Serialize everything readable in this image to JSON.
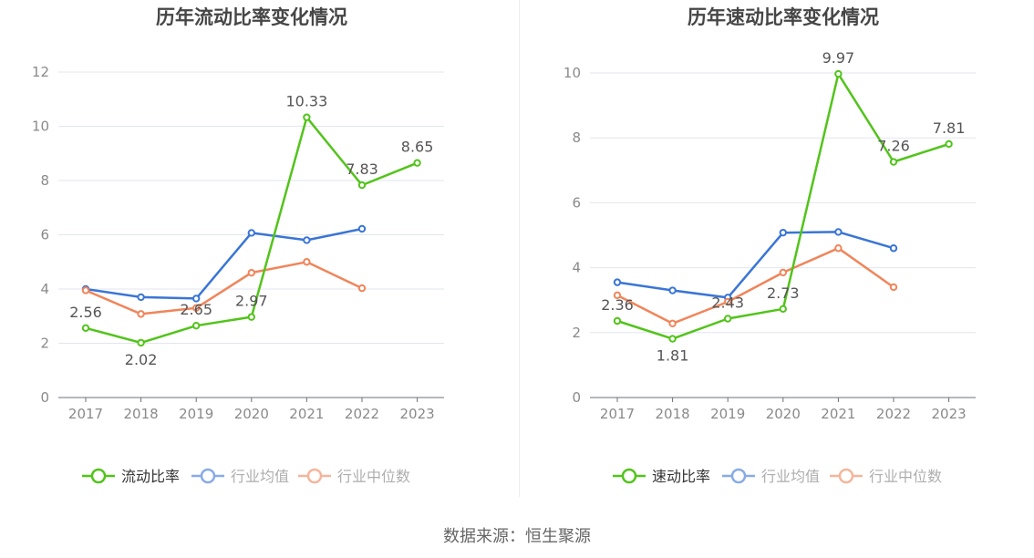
{
  "source": "数据来源：恒生聚源",
  "chart_data": [
    {
      "type": "line",
      "title": "历年流动比率变化情况",
      "categories": [
        "2017",
        "2018",
        "2019",
        "2020",
        "2021",
        "2022",
        "2023"
      ],
      "ylim": [
        0,
        12
      ],
      "yticks": [
        "0",
        "2",
        "4",
        "6",
        "8",
        "10",
        "12"
      ],
      "grid": true,
      "legend_position": "bottom",
      "series": [
        {
          "name": "流动比率",
          "color": "#52c41a",
          "values": [
            2.56,
            2.02,
            2.65,
            2.97,
            10.33,
            7.83,
            8.65
          ],
          "labels": [
            "2.56",
            "2.02",
            "2.65",
            "2.97",
            "10.33",
            "7.83",
            "8.65"
          ]
        },
        {
          "name": "行业均值",
          "color": "#3a75d6",
          "values": [
            4.0,
            3.7,
            3.65,
            6.07,
            5.8,
            6.22,
            null
          ]
        },
        {
          "name": "行业中位数",
          "color": "#f0855a",
          "values": [
            3.95,
            3.08,
            3.3,
            4.6,
            5.0,
            4.03,
            null
          ]
        }
      ]
    },
    {
      "type": "line",
      "title": "历年速动比率变化情况",
      "categories": [
        "2017",
        "2018",
        "2019",
        "2020",
        "2021",
        "2022",
        "2023"
      ],
      "ylim": [
        0,
        10
      ],
      "yticks": [
        "0",
        "2",
        "4",
        "6",
        "8",
        "10"
      ],
      "grid": true,
      "legend_position": "bottom",
      "series": [
        {
          "name": "速动比率",
          "color": "#52c41a",
          "values": [
            2.36,
            1.81,
            2.43,
            2.73,
            9.97,
            7.26,
            7.81
          ],
          "labels": [
            "2.36",
            "1.81",
            "2.43",
            "2.73",
            "9.97",
            "7.26",
            "7.81"
          ]
        },
        {
          "name": "行业均值",
          "color": "#3a75d6",
          "values": [
            3.55,
            3.3,
            3.08,
            5.08,
            5.1,
            4.6,
            null
          ]
        },
        {
          "name": "行业中位数",
          "color": "#f0855a",
          "values": [
            3.15,
            2.28,
            2.95,
            3.85,
            4.6,
            3.4,
            null
          ]
        }
      ]
    }
  ]
}
